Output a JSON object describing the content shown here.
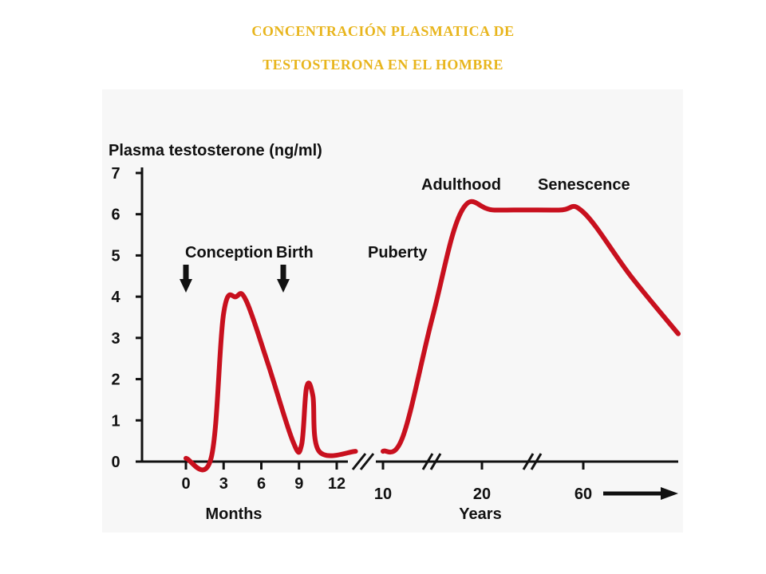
{
  "slide": {
    "title_line1": "CONCENTRACIÓN  PLASMATICA DE",
    "title_line2": "TESTOSTERONA EN EL HOMBRE",
    "title_color": "#E8B51D"
  },
  "chart_data": {
    "type": "line",
    "ylabel": "Plasma testosterone (ng/ml)",
    "ylim": [
      0,
      7
    ],
    "y_ticks": [
      "0",
      "1",
      "2",
      "3",
      "4",
      "5",
      "6",
      "7"
    ],
    "grid": false,
    "line_color": "#C8101E",
    "x_segments": [
      {
        "name": "Months",
        "label": "Months",
        "ticks": [
          "0",
          "3",
          "6",
          "9",
          "12"
        ],
        "points": [
          [
            0,
            0.08
          ],
          [
            2,
            0.08
          ],
          [
            3,
            3.6
          ],
          [
            4,
            4.0
          ],
          [
            4.8,
            3.9
          ],
          [
            6.5,
            2.4
          ],
          [
            8.5,
            0.5
          ],
          [
            9.2,
            0.4
          ],
          [
            9.6,
            1.8
          ],
          [
            10.1,
            1.6
          ],
          [
            10.6,
            0.25
          ],
          [
            13.5,
            0.25
          ]
        ]
      },
      {
        "name": "Years",
        "label": "Years",
        "ticks": [
          "10",
          "20",
          "60"
        ],
        "points": [
          [
            10,
            0.25
          ],
          [
            12,
            0.6
          ],
          [
            15,
            3.5
          ],
          [
            18,
            6.1
          ],
          [
            25,
            6.1
          ],
          [
            50,
            6.1
          ],
          [
            60,
            6.05
          ],
          [
            75,
            4.5
          ],
          [
            90,
            3.1
          ]
        ]
      }
    ],
    "axis_break_marks": 3,
    "annotations": [
      {
        "text": "Conception",
        "arrow": "down"
      },
      {
        "text": "Birth",
        "arrow": "down"
      },
      {
        "text": "Puberty"
      },
      {
        "text": "Adulthood"
      },
      {
        "text": "Senescence"
      }
    ]
  }
}
